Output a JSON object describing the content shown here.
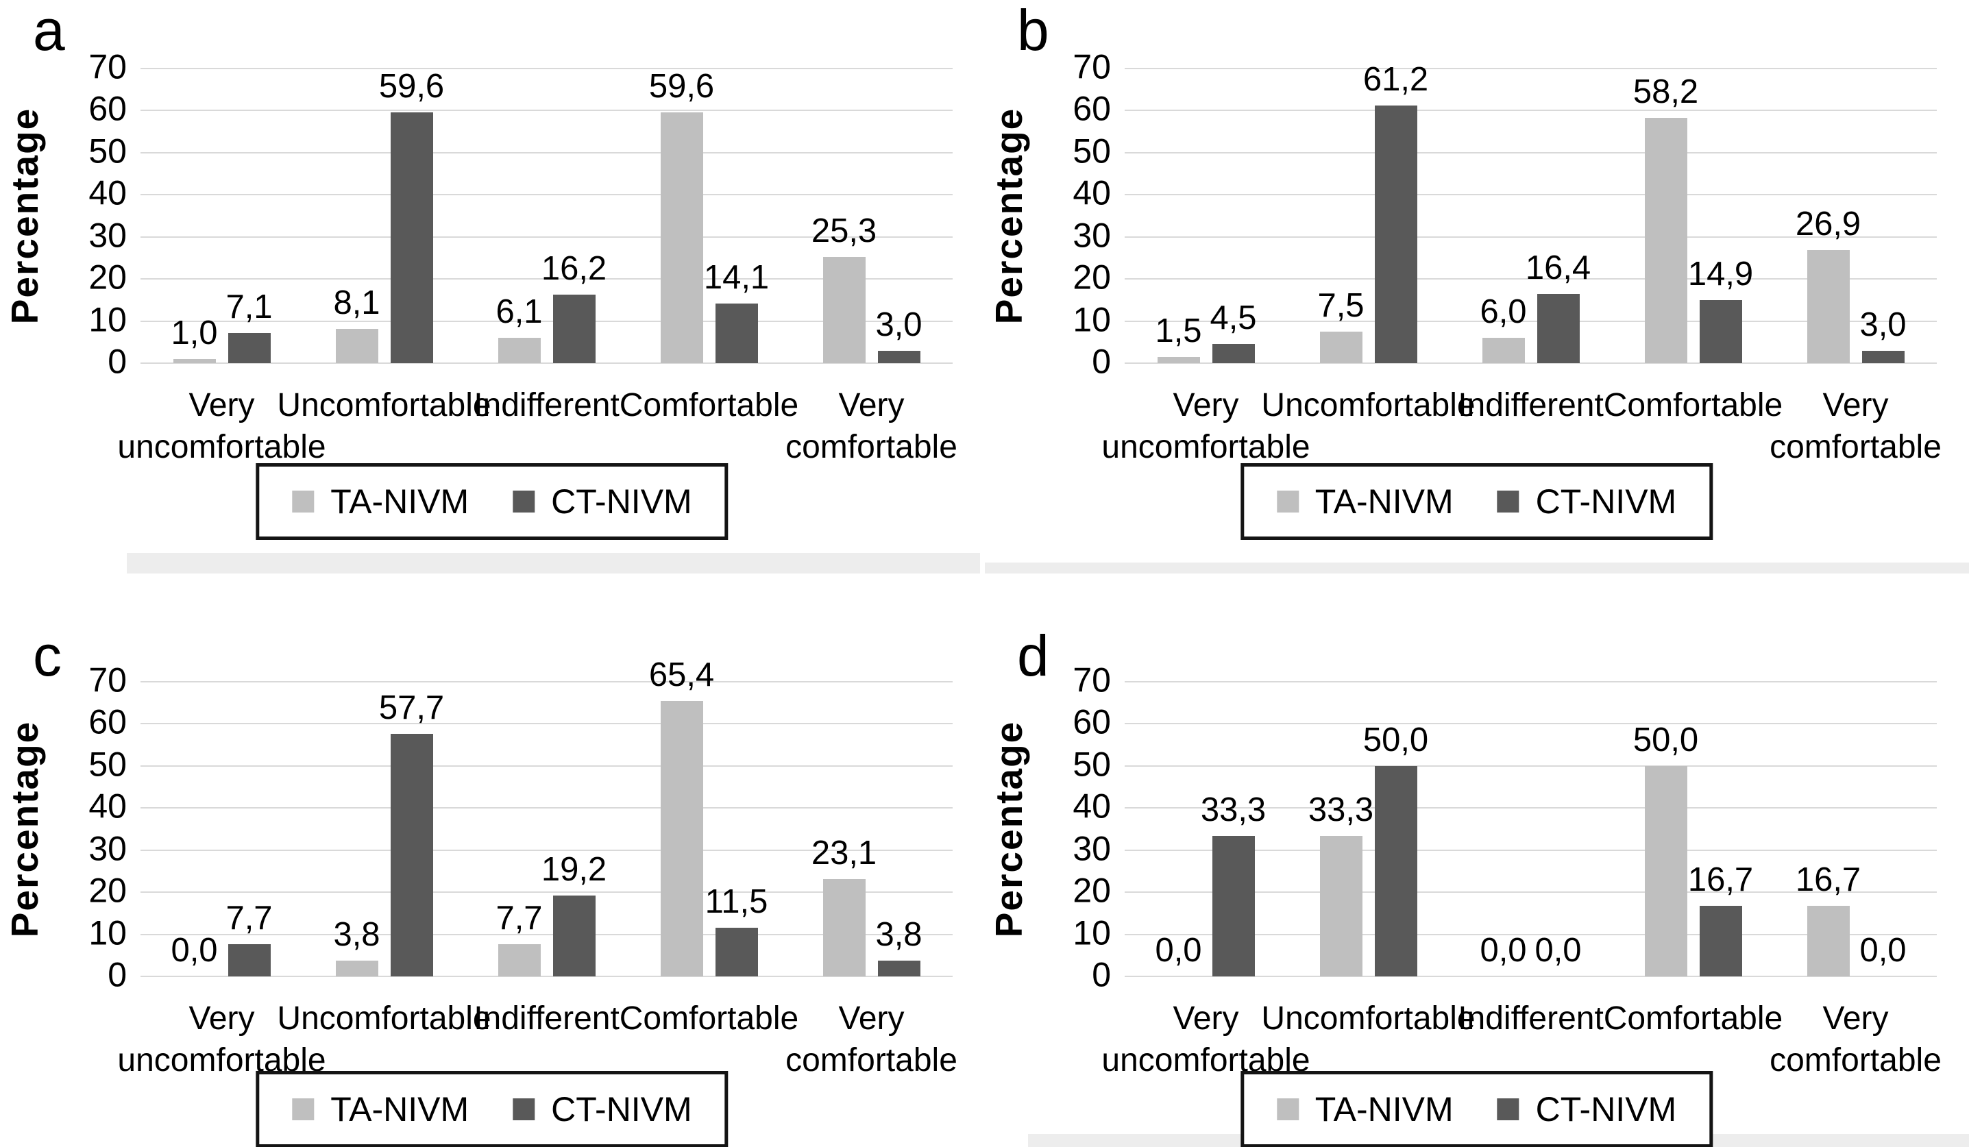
{
  "figure": {
    "background": "#ffffff",
    "colors": {
      "ta": "#bfbfbf",
      "ct": "#595959",
      "gridline": "#d9d9d9",
      "text": "#000000",
      "legend_border": "#141414",
      "artifact": "#ededed"
    },
    "legend": {
      "position": "bottom-center",
      "items": [
        {
          "key": "ta",
          "label": "TA-NIVM"
        },
        {
          "key": "ct",
          "label": "CT-NIVM"
        }
      ]
    }
  },
  "chart_data": [
    {
      "panel": "a",
      "type": "bar",
      "title": "",
      "ylabel": "Percentage",
      "xlabel": "",
      "ylim": [
        0,
        70
      ],
      "yticks": [
        0,
        10,
        20,
        30,
        40,
        50,
        60,
        70
      ],
      "grid": true,
      "categories": [
        "Very uncomfortable",
        "Uncomfortable",
        "Indifferent",
        "Comfortable",
        "Very comfortable"
      ],
      "series": [
        {
          "name": "TA-NIVM",
          "color_key": "ta",
          "values": [
            1.0,
            8.1,
            6.1,
            59.6,
            25.3
          ],
          "labels": [
            "1,0",
            "8,1",
            "6,1",
            "59,6",
            "25,3"
          ]
        },
        {
          "name": "CT-NIVM",
          "color_key": "ct",
          "values": [
            7.1,
            59.6,
            16.2,
            14.1,
            3.0
          ],
          "labels": [
            "7,1",
            "59,6",
            "16,2",
            "14,1",
            "3,0"
          ]
        }
      ]
    },
    {
      "panel": "b",
      "type": "bar",
      "title": "",
      "ylabel": "Percentage",
      "xlabel": "",
      "ylim": [
        0,
        70
      ],
      "yticks": [
        0,
        10,
        20,
        30,
        40,
        50,
        60,
        70
      ],
      "grid": true,
      "categories": [
        "Very uncomfortable",
        "Uncomfortable",
        "Indifferent",
        "Comfortable",
        "Very comfortable"
      ],
      "series": [
        {
          "name": "TA-NIVM",
          "color_key": "ta",
          "values": [
            1.5,
            7.5,
            6.0,
            58.2,
            26.9
          ],
          "labels": [
            "1,5",
            "7,5",
            "6,0",
            "58,2",
            "26,9"
          ]
        },
        {
          "name": "CT-NIVM",
          "color_key": "ct",
          "values": [
            4.5,
            61.2,
            16.4,
            14.9,
            3.0
          ],
          "labels": [
            "4,5",
            "61,2",
            "16,4",
            "14,9",
            "3,0"
          ]
        }
      ]
    },
    {
      "panel": "c",
      "type": "bar",
      "title": "",
      "ylabel": "Percentage",
      "xlabel": "",
      "ylim": [
        0,
        70
      ],
      "yticks": [
        0,
        10,
        20,
        30,
        40,
        50,
        60,
        70
      ],
      "grid": true,
      "categories": [
        "Very uncomfortable",
        "Uncomfortable",
        "Indifferent",
        "Comfortable",
        "Very comfortable"
      ],
      "series": [
        {
          "name": "TA-NIVM",
          "color_key": "ta",
          "values": [
            0.0,
            3.8,
            7.7,
            65.4,
            23.1
          ],
          "labels": [
            "0,0",
            "3,8",
            "7,7",
            "65,4",
            "23,1"
          ]
        },
        {
          "name": "CT-NIVM",
          "color_key": "ct",
          "values": [
            7.7,
            57.7,
            19.2,
            11.5,
            3.8
          ],
          "labels": [
            "7,7",
            "57,7",
            "19,2",
            "11,5",
            "3,8"
          ]
        }
      ]
    },
    {
      "panel": "d",
      "type": "bar",
      "title": "",
      "ylabel": "Percentage",
      "xlabel": "",
      "ylim": [
        0,
        70
      ],
      "yticks": [
        0,
        10,
        20,
        30,
        40,
        50,
        60,
        70
      ],
      "grid": true,
      "categories": [
        "Very uncomfortable",
        "Uncomfortable",
        "Indifferent",
        "Comfortable",
        "Very comfortable"
      ],
      "series": [
        {
          "name": "TA-NIVM",
          "color_key": "ta",
          "values": [
            0.0,
            33.3,
            0.0,
            50.0,
            16.7
          ],
          "labels": [
            "0,0",
            "33,3",
            "0,0",
            "50,0",
            "16,7"
          ]
        },
        {
          "name": "CT-NIVM",
          "color_key": "ct",
          "values": [
            33.3,
            50.0,
            0.0,
            16.7,
            0.0
          ],
          "labels": [
            "33,3",
            "50,0",
            "0,0",
            "16,7",
            "0,0"
          ]
        }
      ]
    }
  ]
}
